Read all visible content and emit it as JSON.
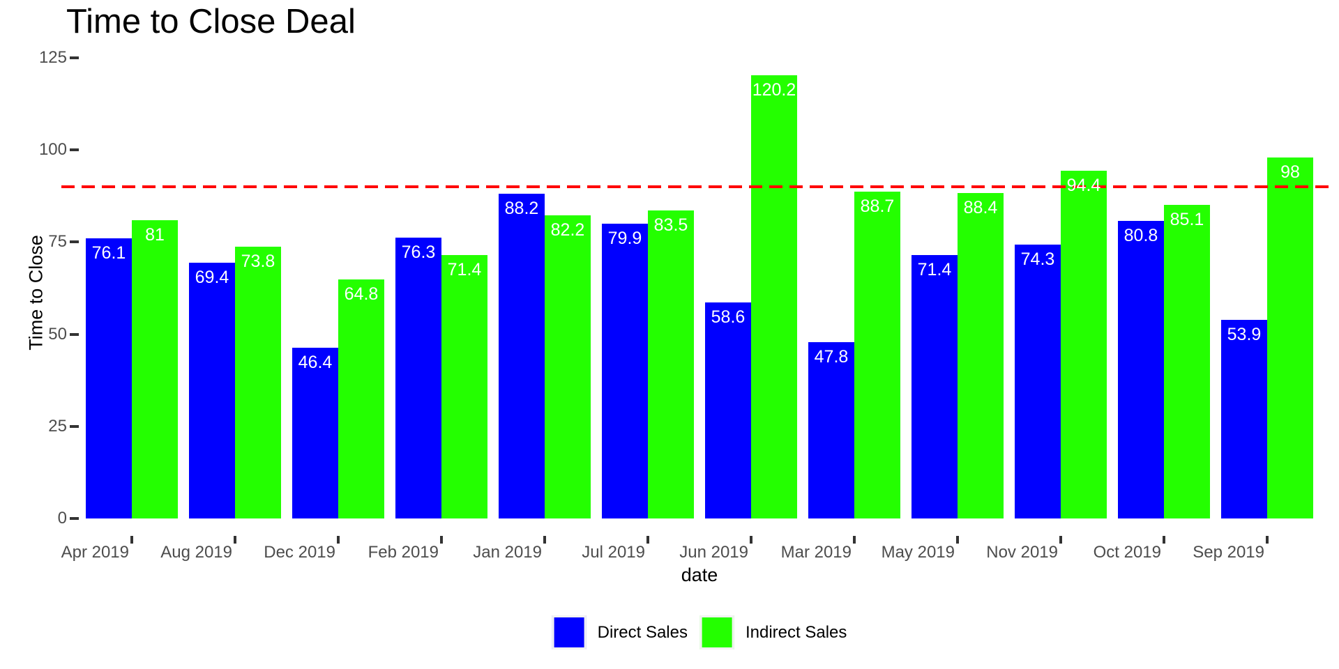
{
  "chart_data": {
    "type": "bar",
    "title": "Time to Close Deal",
    "xlabel": "date",
    "ylabel": "Time to Close",
    "categories": [
      "Apr 2019",
      "Aug 2019",
      "Dec 2019",
      "Feb 2019",
      "Jan 2019",
      "Jul 2019",
      "Jun 2019",
      "Mar 2019",
      "May 2019",
      "Nov 2019",
      "Oct 2019",
      "Sep 2019"
    ],
    "series": [
      {
        "name": "Direct Sales",
        "color": "#0000FF",
        "values": [
          76.1,
          69.4,
          46.4,
          76.3,
          88.2,
          79.9,
          58.6,
          47.8,
          71.4,
          74.3,
          80.8,
          53.9
        ]
      },
      {
        "name": "Indirect Sales",
        "color": "#24FF00",
        "values": [
          81,
          73.8,
          64.8,
          71.4,
          82.2,
          83.5,
          120.2,
          88.7,
          88.4,
          94.4,
          85.1,
          98
        ]
      }
    ],
    "ylim": [
      0,
      125
    ],
    "yticks": [
      0,
      25,
      50,
      75,
      100,
      125
    ],
    "grid": false,
    "legend_position": "bottom",
    "bar_labels": "inside-top",
    "bar_label_color": "#FFFFFF",
    "reference_line": {
      "value": 90,
      "color": "#FF0000",
      "style": "dashed"
    }
  },
  "colors": {
    "background": "#FFFFFF",
    "axis_text": "#4D4D4D",
    "tick_mark": "#333333",
    "title_text": "#000000"
  }
}
